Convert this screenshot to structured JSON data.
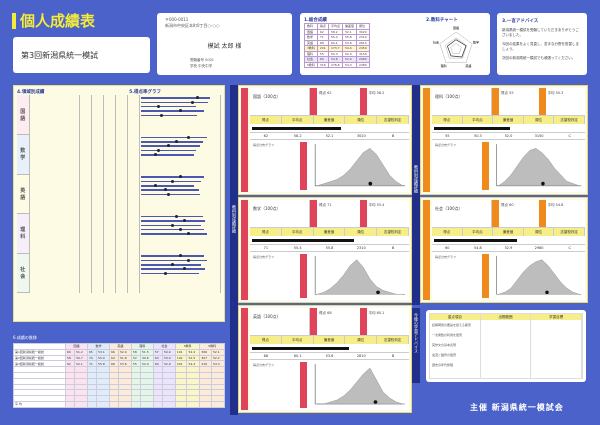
{
  "header": {
    "title": "個人成績表",
    "exam_name": "第3回新潟県統一模試"
  },
  "address": {
    "zip": "〒000-0011",
    "line": "新潟市中央区本町0丁目○-○○",
    "student_name": "模試 太郎 様",
    "student_id": "受験番号 0001",
    "school": "学校 中央中学"
  },
  "results": {
    "title": "1.総合成績",
    "chart_title": "2.教科チャート",
    "columns": [
      "教科",
      "得点",
      "平均点",
      "偏差値",
      "順位"
    ],
    "rows": [
      [
        "国語",
        "62",
        "58.2",
        "52.1",
        "3020"
      ],
      [
        "数学",
        "71",
        "55.4",
        "55.8",
        "2310"
      ],
      [
        "英語",
        "68",
        "60.1",
        "53.6",
        "2810"
      ],
      [
        "3教科",
        "201",
        "173.7",
        "54.4",
        "2450"
      ],
      [
        "理科",
        "55",
        "50.3",
        "52.0",
        "3150"
      ],
      [
        "社会",
        "60",
        "54.8",
        "52.9",
        "2980"
      ],
      [
        "5教科",
        "316",
        "278.8",
        "54.3",
        "2480"
      ]
    ],
    "radar_labels": [
      "国語",
      "数学",
      "英語",
      "理科",
      "社会"
    ],
    "radar_values": [
      0.55,
      0.62,
      0.58,
      0.5,
      0.53
    ]
  },
  "comment": {
    "title": "3.一言アドバイス",
    "text": [
      "新潟県統一模試を受験していただきありがとうございました。",
      "今回の結果をよく見直し、苦手な分野を復習しましょう。",
      "次回の新潟県統一模試でも頑張ってください。"
    ]
  },
  "detail": {
    "title": "4.領域別成績",
    "graph_title": "5.得点率グラフ",
    "subjects": [
      {
        "label": "国語",
        "rows": 6,
        "marks": [
          0.8,
          0.75,
          0.3,
          0.6,
          0.35
        ]
      },
      {
        "label": "数学",
        "rows": 6,
        "marks": [
          0.7,
          0.55,
          0.45,
          0.3,
          0.25
        ]
      },
      {
        "label": "英語",
        "rows": 6,
        "marks": [
          0.6,
          0.5,
          0.25,
          0.4,
          0.45
        ]
      },
      {
        "label": "理科",
        "rows": 6,
        "marks": [
          0.55,
          0.65,
          0.5,
          0.6,
          0.7
        ]
      },
      {
        "label": "社会",
        "rows": 6,
        "marks": [
          0.6,
          0.7,
          0.5,
          0.65,
          0.4
        ]
      }
    ]
  },
  "history": {
    "title": "6.成績の推移",
    "subjects": [
      "国語",
      "数学",
      "英語",
      "理科",
      "社会",
      "3教科",
      "5教科"
    ],
    "rows": [
      [
        "第1回新潟県統一模試",
        "60",
        "51.2",
        "65",
        "53.1",
        "66",
        "52.0",
        "58",
        "51.5",
        "57",
        "50.9",
        "191",
        "52.4",
        "306",
        "52.1"
      ],
      [
        "第2回新潟県統一模試",
        "58",
        "50.7",
        "70",
        "55.0",
        "64",
        "51.8",
        "52",
        "49.6",
        "63",
        "53.0",
        "192",
        "52.5",
        "307",
        "52.2"
      ],
      [
        "第3回新潟県統一模試",
        "62",
        "52.1",
        "71",
        "55.8",
        "68",
        "53.6",
        "55",
        "52.0",
        "60",
        "52.9",
        "201",
        "54.4",
        "316",
        "54.3"
      ]
    ],
    "avg_label": "平 均"
  },
  "strips": {
    "mid": "教科別成績詳細",
    "right": "教科別成績詳細",
    "advice": "今後の学習アドバイス"
  },
  "cards_header": [
    "得点",
    "平均点",
    "偏差値",
    "順位",
    "志望校判定"
  ],
  "cards": [
    {
      "subject": "国語（100点）",
      "stat1": "得点 62",
      "stat2": "平均 58.2",
      "values": [
        "62",
        "58.2",
        "52.1",
        "3020",
        "B"
      ],
      "score": 0.62,
      "note": "得点分布グラフ",
      "dist": [
        0,
        1,
        2,
        3,
        5,
        8,
        12,
        16,
        18,
        15,
        10,
        5,
        2,
        0
      ]
    },
    {
      "subject": "数学（100点）",
      "stat1": "得点 71",
      "stat2": "平均 55.4",
      "values": [
        "71",
        "55.4",
        "55.8",
        "2310",
        "B"
      ],
      "score": 0.71,
      "note": "得点分布グラフ",
      "dist": [
        0,
        1,
        3,
        6,
        10,
        15,
        18,
        14,
        8,
        4,
        2,
        1,
        0,
        0
      ]
    },
    {
      "subject": "英語（100点）",
      "stat1": "得点 68",
      "stat2": "平均 60.1",
      "values": [
        "68",
        "60.1",
        "53.6",
        "2810",
        "B"
      ],
      "score": 0.68,
      "note": "得点分布グラフ",
      "dist": [
        0,
        0,
        1,
        2,
        4,
        7,
        11,
        15,
        18,
        12,
        6,
        3,
        1,
        0
      ]
    },
    {
      "subject": "理科（100点）",
      "stat1": "得点 55",
      "stat2": "平均 50.3",
      "values": [
        "55",
        "50.3",
        "52.0",
        "3150",
        "C"
      ],
      "score": 0.55,
      "note": "得点分布グラフ",
      "dist": [
        0,
        2,
        5,
        9,
        13,
        16,
        17,
        15,
        12,
        8,
        5,
        2,
        1,
        0
      ]
    },
    {
      "subject": "社会（100点）",
      "stat1": "得点 60",
      "stat2": "平均 54.8",
      "values": [
        "60",
        "54.8",
        "52.9",
        "2980",
        "C"
      ],
      "score": 0.6,
      "note": "得点分布グラフ",
      "dist": [
        0,
        1,
        3,
        7,
        11,
        14,
        16,
        17,
        14,
        10,
        6,
        3,
        1,
        0
      ]
    }
  ],
  "advice": {
    "columns": [
      "重点項目",
      "出題範囲",
      "学習目標"
    ],
    "items": [
      "読解問題の要旨を捉える練習",
      "一次関数の利用を復習",
      "英作文の基本表現",
      "電流と磁界の復習",
      "歴史の年代整理"
    ]
  },
  "footer": "主催 新潟県統一模試会",
  "colors": {
    "background": "#4a62c9",
    "accent_yellow": "#f4ea3a",
    "red": "#e0445a",
    "orange": "#ef8a1c"
  }
}
